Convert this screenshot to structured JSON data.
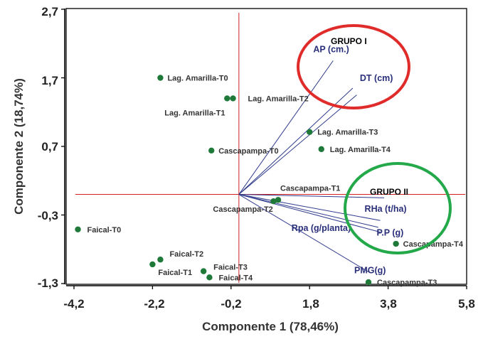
{
  "chart_data": {
    "type": "scatter",
    "subtype": "biplot",
    "xlabel": "Componente 1 (78,46%)",
    "ylabel": "Componente 2 (18,74%)",
    "xlim": [
      -4.2,
      5.8
    ],
    "ylim": [
      -1.3,
      2.7
    ],
    "xticks": [
      -4.2,
      -2.2,
      -0.2,
      1.8,
      3.8,
      5.8
    ],
    "xtick_labels": [
      "-4,2",
      "-2,2",
      "-0,2",
      "1,8",
      "3,8",
      "5,8"
    ],
    "yticks": [
      -1.3,
      -0.3,
      0.7,
      1.7,
      2.7
    ],
    "ytick_labels": [
      "-1,3",
      "-0,3",
      "0,7",
      "1,7",
      "2,7"
    ],
    "origin_lines": {
      "x": 0,
      "y": 0
    },
    "points": [
      {
        "label": "Lag. Amarilla-T0",
        "x": -2.0,
        "y": 1.7
      },
      {
        "label": "Lag. Amarilla-T1",
        "x": -0.3,
        "y": 1.4
      },
      {
        "label": "Lag. Amarilla-T2",
        "x": -0.15,
        "y": 1.4
      },
      {
        "label": "Lag. Amarilla-T3",
        "x": 1.8,
        "y": 0.91
      },
      {
        "label": "Lag. Amarilla-T4",
        "x": 2.1,
        "y": 0.66
      },
      {
        "label": "Cascapampa-T0",
        "x": -0.7,
        "y": 0.64
      },
      {
        "label": "Cascapampa-T1",
        "x": 1.0,
        "y": -0.08
      },
      {
        "label": "Cascapampa-T2",
        "x": 0.88,
        "y": -0.1
      },
      {
        "label": "Cascapampa-T3",
        "x": 3.3,
        "y": -1.28
      },
      {
        "label": "Cascapampa-T4",
        "x": 4.0,
        "y": -0.72
      },
      {
        "label": "Faical-T0",
        "x": -4.1,
        "y": -0.51
      },
      {
        "label": "Faical-T1",
        "x": -2.2,
        "y": -1.02
      },
      {
        "label": "Faical-T2",
        "x": -2.0,
        "y": -0.95
      },
      {
        "label": "Faical-T3",
        "x": -0.9,
        "y": -1.12
      },
      {
        "label": "Faical-T4",
        "x": -0.75,
        "y": -1.21
      }
    ],
    "vectors": [
      {
        "label": "AP (cm.)",
        "x": 2.4,
        "y": 1.95
      },
      {
        "label": "DT (cm)",
        "x": 2.9,
        "y": 1.55
      },
      {
        "label": "RHa (t/ha)",
        "x": 3.6,
        "y": -0.38
      },
      {
        "label": "P.P (g)",
        "x": 3.6,
        "y": -0.55
      },
      {
        "label": "Rpa (g/planta)",
        "x": 3.55,
        "y": -0.48
      },
      {
        "label": "PMG(g)",
        "x": 3.3,
        "y": -1.13
      }
    ],
    "groups": [
      {
        "label": "GRUPO I",
        "color": "#e02b2b",
        "members": [
          "AP (cm.)",
          "DT (cm)"
        ]
      },
      {
        "label": "GRUPO II",
        "color": "#23a84a",
        "members": [
          "RHa (t/ha)",
          "P.P (g)",
          "Rpa (g/planta)",
          "PMG(g)"
        ]
      }
    ],
    "colors": {
      "points": "#1f7a3a",
      "vectors": "#2e3a8c",
      "vector_text": "#2a2f7a",
      "origin_lines": "#d42020",
      "frame": "#000000"
    }
  }
}
